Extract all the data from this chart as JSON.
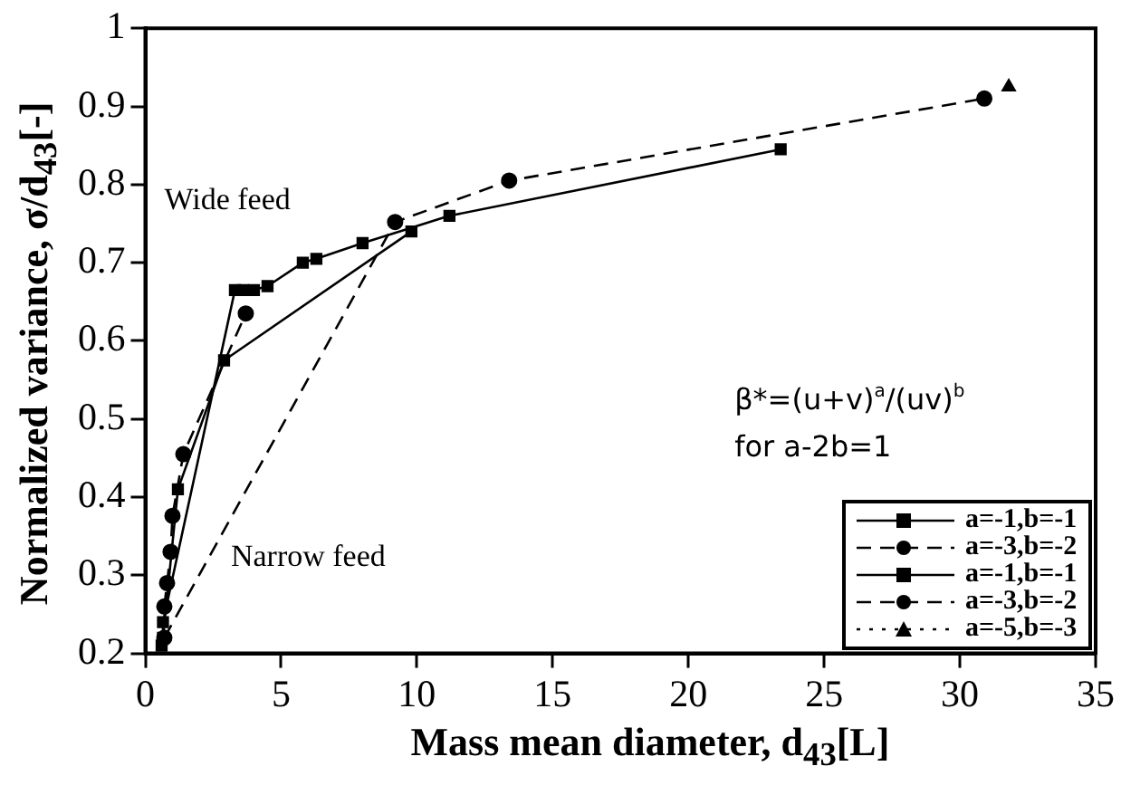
{
  "chart_data": {
    "type": "line",
    "xlabel": "Mass mean diameter, d$_{43}$[L]",
    "ylabel": "Normalized variance, σ/d$_{43}$[-]",
    "xlim": [
      0,
      35
    ],
    "xticks": [
      0,
      5,
      10,
      15,
      20,
      25,
      30,
      35
    ],
    "ylim": [
      0.2,
      1
    ],
    "yticks": [
      0.2,
      0.3,
      0.4,
      0.5,
      0.6,
      0.7,
      0.8,
      0.9,
      1
    ],
    "grid": false,
    "legend": "bottom right",
    "annotations": [
      "Wide feed",
      "Narrow feed",
      "β*=(u+v)$^{a}$/(uv)$^{b}$",
      "for a-2b=1"
    ],
    "series": [
      {
        "name": "a=-1,b=-1",
        "color": "#000000",
        "marker": "square",
        "line_style": "solid",
        "x": [
          0.65,
          1.2,
          2.9,
          9.8
        ],
        "values": [
          0.22,
          0.41,
          0.575,
          0.74
        ]
      },
      {
        "name": "a=-3,b=-2",
        "color": "#000000",
        "marker": "circle",
        "line_style": "dashed",
        "x": [
          0.7,
          0.8,
          0.93,
          1.0,
          1.4,
          3.7
        ],
        "values": [
          0.26,
          0.29,
          0.33,
          0.376,
          0.455,
          0.635
        ]
      },
      {
        "name": "a=-1,b=-1",
        "color": "#000000",
        "marker": "square",
        "line_style": "solid",
        "x": [
          0.6,
          0.65,
          3.3,
          3.6,
          4.0,
          4.5,
          5.8,
          6.3,
          8.0,
          11.2,
          23.4
        ],
        "values": [
          0.21,
          0.24,
          0.665,
          0.665,
          0.665,
          0.67,
          0.7,
          0.705,
          0.725,
          0.76,
          0.845
        ]
      },
      {
        "name": "a=-3,b=-2",
        "color": "#000000",
        "marker": "circle",
        "line_style": "dashed",
        "x": [
          0.7,
          9.2,
          13.4,
          30.9
        ],
        "values": [
          0.22,
          0.752,
          0.805,
          0.91
        ]
      },
      {
        "name": "a=-5,b=-3",
        "color": "#000000",
        "marker": "triangle",
        "line_style": "dotted",
        "x": [
          31.8
        ],
        "values": [
          0.925
        ]
      }
    ]
  }
}
